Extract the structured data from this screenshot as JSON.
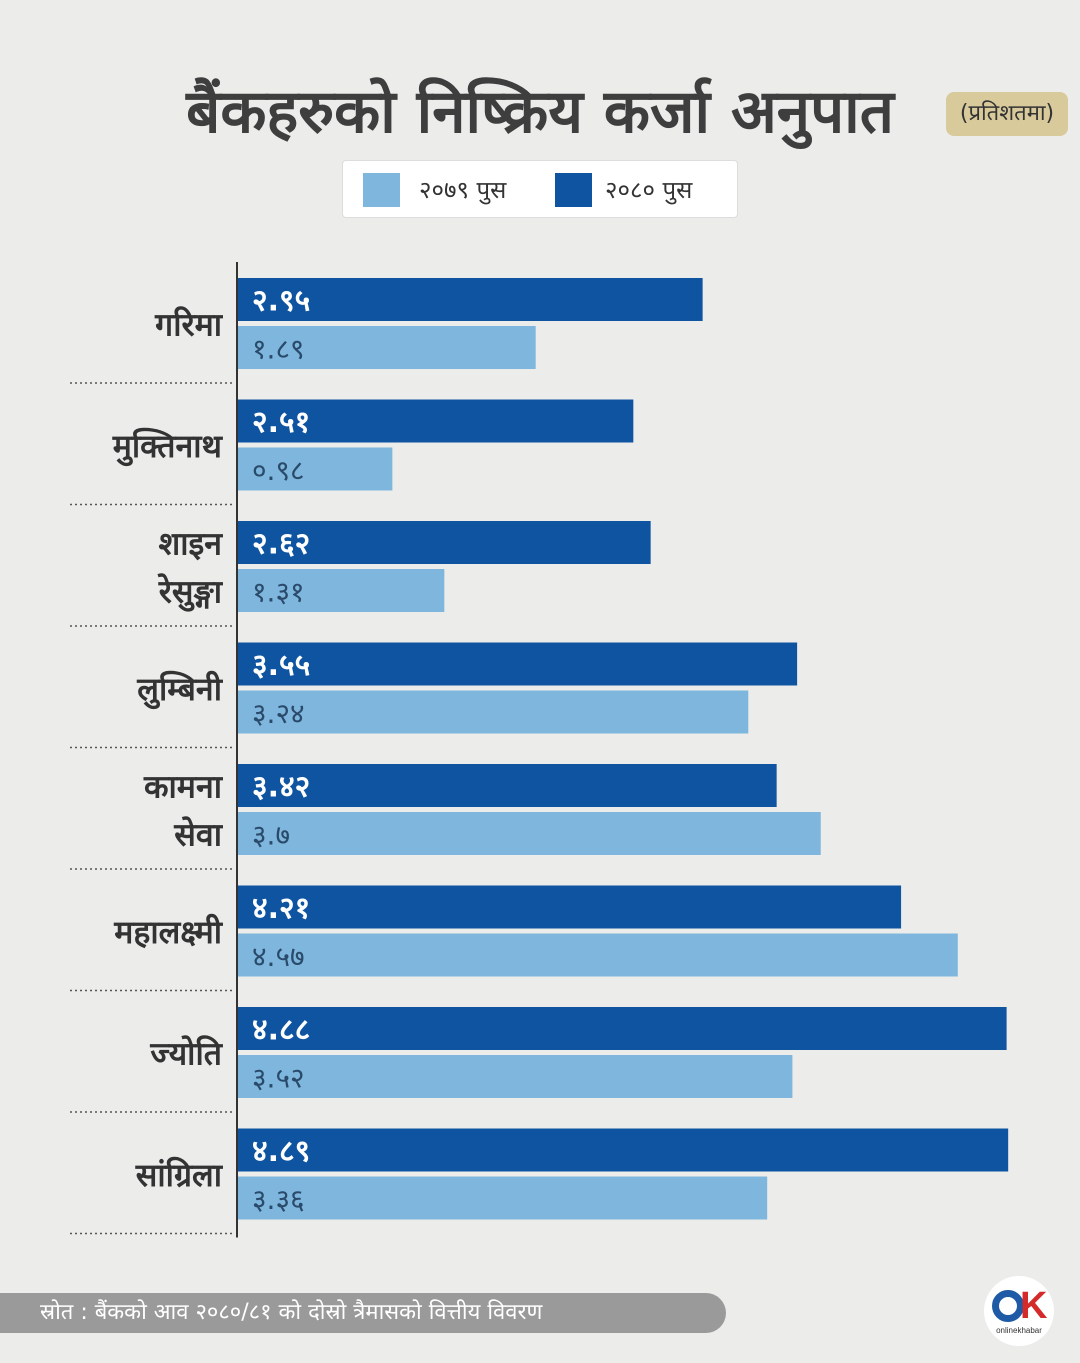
{
  "title": "बैंकहरुको निष्क्रिय कर्जा अनुपात",
  "unit": "(प्रतिशतमा)",
  "legend": {
    "series_a_label": "२०७९ पुस",
    "series_b_label": "२०८० पुस"
  },
  "colors": {
    "series_a": "#7eb6de",
    "series_b": "#0f54a0",
    "axis": "#333333",
    "separator": "#555555"
  },
  "footer": {
    "source": "स्रोत : बैंकको आव २०८०/८१ को दोस्रो त्रैमासको वित्तीय विवरण"
  },
  "logo": {
    "mark_o": "O",
    "mark_k": "K",
    "text": "onlinekhabar.com"
  },
  "chart_data": {
    "type": "bar",
    "orientation": "horizontal",
    "categories": [
      [
        "गरिमा"
      ],
      [
        "मुक्तिनाथ"
      ],
      [
        "शाइन",
        "रेसुङ्गा"
      ],
      [
        "लुम्बिनी"
      ],
      [
        "कामना",
        "सेवा"
      ],
      [
        "महालक्ष्मी"
      ],
      [
        "ज्योति"
      ],
      [
        "सांग्रिला"
      ]
    ],
    "series": [
      {
        "name": "२०८० पुस",
        "values": [
          2.95,
          2.51,
          2.62,
          3.55,
          3.42,
          4.21,
          4.88,
          4.89
        ],
        "labels": [
          "२.९५",
          "२.५१",
          "२.६२",
          "३.५५",
          "३.४२",
          "४.२१",
          "४.८८",
          "४.८९"
        ]
      },
      {
        "name": "२०७९ पुस",
        "values": [
          1.89,
          0.98,
          1.31,
          3.24,
          3.7,
          4.57,
          3.52,
          3.36
        ],
        "labels": [
          "१.८९",
          "०.९८",
          "१.३१",
          "३.२४",
          "३.७",
          "४.५७",
          "३.५२",
          "३.३६"
        ]
      }
    ],
    "xlim": [
      0,
      4.9
    ],
    "grid": false,
    "legend_position": "top-center"
  }
}
